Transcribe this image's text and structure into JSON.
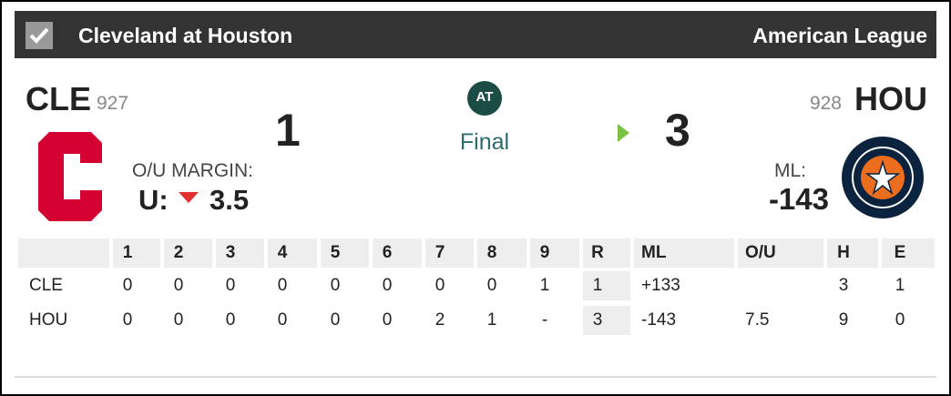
{
  "header": {
    "title": "Cleveland at Houston",
    "league": "American League"
  },
  "away": {
    "abbr": "CLE",
    "number": "927",
    "score": "1",
    "ou_label": "O/U MARGIN:",
    "ou_prefix": "U:",
    "ou_value": "3.5"
  },
  "center": {
    "badge": "AT",
    "status": "Final"
  },
  "home": {
    "abbr": "HOU",
    "number": "928",
    "score": "3",
    "ml_label": "ML:",
    "ml_value": "-143"
  },
  "table": {
    "columns": [
      "1",
      "2",
      "3",
      "4",
      "5",
      "6",
      "7",
      "8",
      "9",
      "R",
      "ML",
      "O/U",
      "H",
      "E"
    ],
    "rows": [
      {
        "team": "CLE",
        "cells": [
          "0",
          "0",
          "0",
          "0",
          "0",
          "0",
          "0",
          "0",
          "1",
          "1",
          "+133",
          null,
          "3",
          "1"
        ]
      },
      {
        "team": "HOU",
        "cells": [
          "0",
          "0",
          "0",
          "0",
          "0",
          "0",
          "2",
          "1",
          "-",
          "3",
          "-143",
          "7.5",
          "9",
          "0"
        ]
      }
    ]
  }
}
